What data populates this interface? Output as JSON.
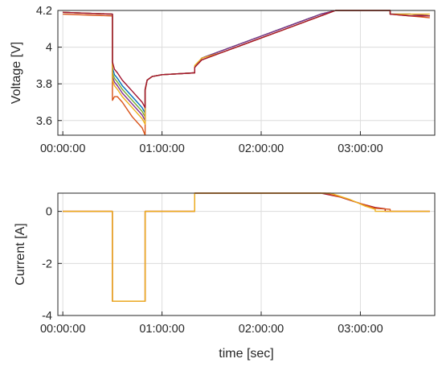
{
  "chart_data": [
    {
      "type": "line",
      "title": "",
      "xlabel": "",
      "ylabel": "Voltage [V]",
      "xlim": [
        -0.05,
        3.75
      ],
      "ylim": [
        3.52,
        4.2
      ],
      "grid": true,
      "xticks": [
        {
          "value": 0,
          "label": "00:00:00"
        },
        {
          "value": 1,
          "label": "01:00:00"
        },
        {
          "value": 2,
          "label": "02:00:00"
        },
        {
          "value": 3,
          "label": "03:00:00"
        }
      ],
      "yticks": [
        {
          "value": 3.6,
          "label": "3.6"
        },
        {
          "value": 3.8,
          "label": "3.8"
        },
        {
          "value": 4.0,
          "label": "4"
        },
        {
          "value": 4.2,
          "label": "4.2"
        }
      ],
      "series": [
        {
          "color": "#D95319",
          "x": [
            0,
            0.5,
            0.5,
            0.52,
            0.55,
            0.6,
            0.7,
            0.8,
            0.83,
            0.83,
            0.85,
            0.9,
            1.0,
            1.33,
            1.33,
            1.4,
            1.6,
            1.8,
            2.0,
            2.2,
            2.4,
            2.6,
            2.75,
            2.8,
            3.0,
            3.2,
            3.3,
            3.3,
            3.5,
            3.7
          ],
          "y": [
            4.18,
            4.17,
            3.71,
            3.73,
            3.73,
            3.7,
            3.62,
            3.56,
            3.52,
            3.76,
            3.82,
            3.84,
            3.85,
            3.86,
            3.89,
            3.93,
            3.97,
            4.01,
            4.05,
            4.09,
            4.13,
            4.17,
            4.2,
            4.2,
            4.2,
            4.2,
            4.2,
            4.18,
            4.17,
            4.16
          ]
        },
        {
          "color": "#0072BD",
          "x": [
            0,
            0.5,
            0.5,
            0.52,
            0.55,
            0.6,
            0.7,
            0.8,
            0.83,
            0.83,
            0.85,
            0.9,
            1.0,
            1.33,
            1.33,
            1.4,
            1.6,
            1.8,
            2.0,
            2.2,
            2.4,
            2.6,
            2.75,
            2.8,
            3.0,
            3.2,
            3.3,
            3.3,
            3.5,
            3.7
          ],
          "y": [
            4.19,
            4.18,
            3.89,
            3.85,
            3.83,
            3.79,
            3.73,
            3.67,
            3.64,
            3.77,
            3.82,
            3.84,
            3.85,
            3.86,
            3.89,
            3.94,
            3.98,
            4.02,
            4.06,
            4.1,
            4.14,
            4.18,
            4.2,
            4.2,
            4.2,
            4.2,
            4.2,
            4.18,
            4.18,
            4.17
          ]
        },
        {
          "color": "#77AC30",
          "x": [
            0,
            0.5,
            0.5,
            0.52,
            0.55,
            0.6,
            0.7,
            0.8,
            0.83,
            0.83,
            0.85,
            0.9,
            1.0,
            1.33,
            1.33,
            1.4,
            1.6,
            1.8,
            2.0,
            2.2,
            2.4,
            2.6,
            2.75,
            2.8,
            3.0,
            3.2,
            3.3,
            3.3,
            3.5,
            3.7
          ],
          "y": [
            4.19,
            4.18,
            3.86,
            3.83,
            3.81,
            3.77,
            3.71,
            3.65,
            3.62,
            3.77,
            3.82,
            3.84,
            3.85,
            3.86,
            3.89,
            3.94,
            3.98,
            4.02,
            4.06,
            4.1,
            4.14,
            4.18,
            4.2,
            4.2,
            4.2,
            4.2,
            4.2,
            4.18,
            4.18,
            4.17
          ]
        },
        {
          "color": "#7E2F8E",
          "x": [
            0,
            0.5,
            0.5,
            0.52,
            0.55,
            0.6,
            0.7,
            0.8,
            0.83,
            0.83,
            0.85,
            0.9,
            1.0,
            1.33,
            1.33,
            1.4,
            1.6,
            1.8,
            2.0,
            2.2,
            2.4,
            2.6,
            2.75,
            2.8,
            3.0,
            3.2,
            3.3,
            3.3,
            3.5,
            3.7
          ],
          "y": [
            4.19,
            4.18,
            3.84,
            3.81,
            3.79,
            3.75,
            3.69,
            3.63,
            3.6,
            3.77,
            3.82,
            3.84,
            3.85,
            3.86,
            3.89,
            3.94,
            3.98,
            4.02,
            4.06,
            4.1,
            4.14,
            4.18,
            4.2,
            4.2,
            4.2,
            4.2,
            4.2,
            4.18,
            4.18,
            4.17
          ]
        },
        {
          "color": "#EDB120",
          "x": [
            0,
            0.5,
            0.5,
            0.52,
            0.55,
            0.6,
            0.7,
            0.8,
            0.83,
            0.83,
            0.85,
            0.9,
            1.0,
            1.33,
            1.33,
            1.4,
            1.6,
            1.8,
            2.0,
            2.2,
            2.4,
            2.6,
            2.75,
            2.8,
            3.0,
            3.2,
            3.3,
            3.3,
            3.5,
            3.7
          ],
          "y": [
            4.19,
            4.18,
            3.82,
            3.79,
            3.77,
            3.73,
            3.67,
            3.61,
            3.58,
            3.77,
            3.82,
            3.84,
            3.85,
            3.86,
            3.9,
            3.94,
            3.97,
            4.01,
            4.05,
            4.09,
            4.13,
            4.17,
            4.2,
            4.2,
            4.2,
            4.2,
            4.2,
            4.18,
            4.18,
            4.18
          ]
        },
        {
          "color": "#A2142F",
          "x": [
            0,
            0.5,
            0.5,
            0.52,
            0.55,
            0.6,
            0.7,
            0.8,
            0.83,
            0.83,
            0.85,
            0.9,
            1.0,
            1.33,
            1.33,
            1.4,
            1.6,
            1.8,
            2.0,
            2.2,
            2.4,
            2.6,
            2.75,
            2.8,
            3.0,
            3.2,
            3.3,
            3.3,
            3.5,
            3.7
          ],
          "y": [
            4.19,
            4.18,
            3.92,
            3.88,
            3.86,
            3.82,
            3.76,
            3.7,
            3.67,
            3.77,
            3.82,
            3.84,
            3.85,
            3.86,
            3.89,
            3.93,
            3.97,
            4.01,
            4.05,
            4.09,
            4.13,
            4.17,
            4.2,
            4.2,
            4.2,
            4.2,
            4.2,
            4.18,
            4.17,
            4.17
          ]
        }
      ]
    },
    {
      "type": "line",
      "title": "",
      "xlabel": "time [sec]",
      "ylabel": "Current [A]",
      "xlim": [
        -0.05,
        3.75
      ],
      "ylim": [
        -4,
        0.7
      ],
      "grid": true,
      "xticks": [
        {
          "value": 0,
          "label": "00:00:00"
        },
        {
          "value": 1,
          "label": "01:00:00"
        },
        {
          "value": 2,
          "label": "02:00:00"
        },
        {
          "value": 3,
          "label": "03:00:00"
        }
      ],
      "yticks": [
        {
          "value": -4,
          "label": "-4"
        },
        {
          "value": -2,
          "label": "-2"
        },
        {
          "value": 0,
          "label": "0"
        }
      ],
      "series": [
        {
          "color": "#A2142F",
          "x": [
            0,
            0.5,
            0.5,
            0.83,
            0.83,
            1.33,
            1.33,
            2.6,
            2.8,
            3.0,
            3.15,
            3.25,
            3.25,
            3.7
          ],
          "y": [
            0,
            0,
            -3.45,
            -3.45,
            0,
            0,
            0.7,
            0.7,
            0.55,
            0.3,
            0.15,
            0.1,
            0,
            0
          ]
        },
        {
          "color": "#D95319",
          "x": [
            0,
            0.5,
            0.5,
            0.83,
            0.83,
            1.33,
            1.33,
            2.65,
            2.85,
            3.0,
            3.15,
            3.3,
            3.3,
            3.7
          ],
          "y": [
            0,
            0,
            -3.45,
            -3.45,
            0,
            0,
            0.7,
            0.7,
            0.5,
            0.3,
            0.12,
            0.08,
            0,
            0
          ]
        },
        {
          "color": "#EDB120",
          "x": [
            0,
            0.5,
            0.5,
            0.83,
            0.83,
            1.33,
            1.33,
            2.7,
            2.9,
            3.05,
            3.15,
            3.15,
            3.7
          ],
          "y": [
            0,
            0,
            -3.45,
            -3.45,
            0,
            0,
            0.7,
            0.7,
            0.45,
            0.2,
            0.08,
            0,
            0
          ]
        }
      ]
    }
  ]
}
